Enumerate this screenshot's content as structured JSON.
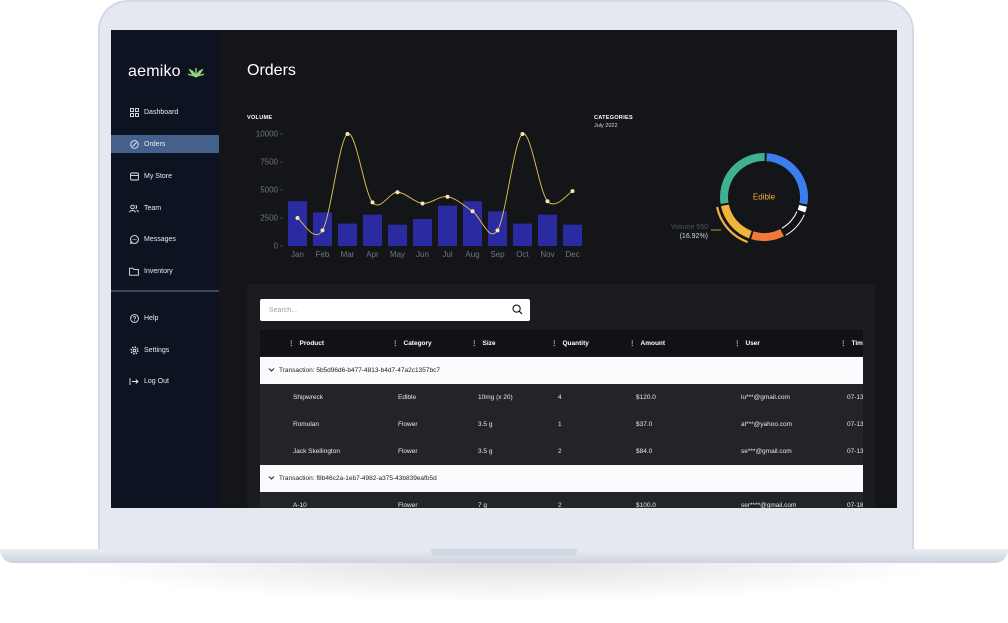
{
  "app": {
    "brand": "aemiko",
    "page_title": "Orders"
  },
  "sidebar": {
    "items": [
      {
        "label": "Dashboard",
        "icon": "grid-icon",
        "active": false
      },
      {
        "label": "Orders",
        "icon": "orders-icon",
        "active": true
      },
      {
        "label": "My Store",
        "icon": "store-icon",
        "active": false
      },
      {
        "label": "Team",
        "icon": "team-icon",
        "active": false
      },
      {
        "label": "Messages",
        "icon": "chat-icon",
        "active": false
      },
      {
        "label": "Inventory",
        "icon": "folder-icon",
        "active": false
      }
    ],
    "bottom_items": [
      {
        "label": "Help",
        "icon": "help-icon"
      },
      {
        "label": "Settings",
        "icon": "gear-icon"
      },
      {
        "label": "Log Out",
        "icon": "logout-icon"
      }
    ]
  },
  "volume": {
    "label": "VOLUME"
  },
  "categories": {
    "label": "CATEGORIES",
    "period": "July 2022",
    "center_label": "Edible",
    "tooltip_line1": "Volume 550",
    "tooltip_line2": "(16.92%)"
  },
  "chart_data": [
    {
      "type": "bar",
      "title": "VOLUME",
      "categories": [
        "Jan",
        "Feb",
        "Mar",
        "Apr",
        "May",
        "Jun",
        "Jul",
        "Aug",
        "Sep",
        "Oct",
        "Nov",
        "Dec"
      ],
      "ylim": [
        0,
        10000
      ],
      "yticks": [
        "10000",
        "7500",
        "5000",
        "2500",
        "0"
      ],
      "series": [
        {
          "type": "bar",
          "values": [
            4000,
            3000,
            2000,
            2800,
            1900,
            2400,
            3600,
            4000,
            3100,
            2000,
            2800,
            1900
          ]
        },
        {
          "type": "line",
          "values": [
            2500,
            1400,
            10000,
            3900,
            4800,
            3800,
            4400,
            3100,
            1400,
            10000,
            4000,
            4900
          ]
        }
      ],
      "colors": {
        "bar": "#2a2ba0",
        "line": "#e8c45a"
      }
    },
    {
      "type": "pie",
      "title": "CATEGORIES",
      "subtitle": "July 2022",
      "slices": [
        {
          "name": "Edible",
          "percent": 16.92,
          "color": "#f2b33d"
        },
        {
          "percent": 27.5,
          "color": "#3a7ef0"
        },
        {
          "percent": 3,
          "color": "#ffffff"
        },
        {
          "percent": 11,
          "color": "#111111"
        },
        {
          "percent": 13,
          "color": "#f07a3a"
        },
        {
          "percent": 28.58,
          "color": "#3fb18f"
        }
      ],
      "highlighted": "Edible"
    }
  ],
  "table": {
    "search_placeholder": "Search...",
    "columns": [
      "Product",
      "Category",
      "Size",
      "Quantity",
      "Amount",
      "User",
      "Tim"
    ],
    "groups": [
      {
        "title": "Transaction: 5b5d96d6-b477-4813-b4d7-47a2c1357bc7",
        "rows": [
          [
            "Shipwreck",
            "Edible",
            "10mg (x 20)",
            "4",
            "$120.0",
            "lu***@gmail.com",
            "07-13"
          ],
          [
            "Romulan",
            "Flower",
            "3.5 g",
            "1",
            "$37.0",
            "al***@yahoo.com",
            "07-13"
          ],
          [
            "Jack Skellington",
            "Flower",
            "3.5 g",
            "2",
            "$84.0",
            "se***@gmail.com",
            "07-13"
          ]
        ]
      },
      {
        "title": "Transaction: f8b46c2a-1eb7-4982-a375-43b839eafb5d",
        "rows": [
          [
            "A-10",
            "Flower",
            "7 g",
            "2",
            "$100.0",
            "ser****@gmail.com",
            "07-18"
          ]
        ]
      }
    ]
  }
}
